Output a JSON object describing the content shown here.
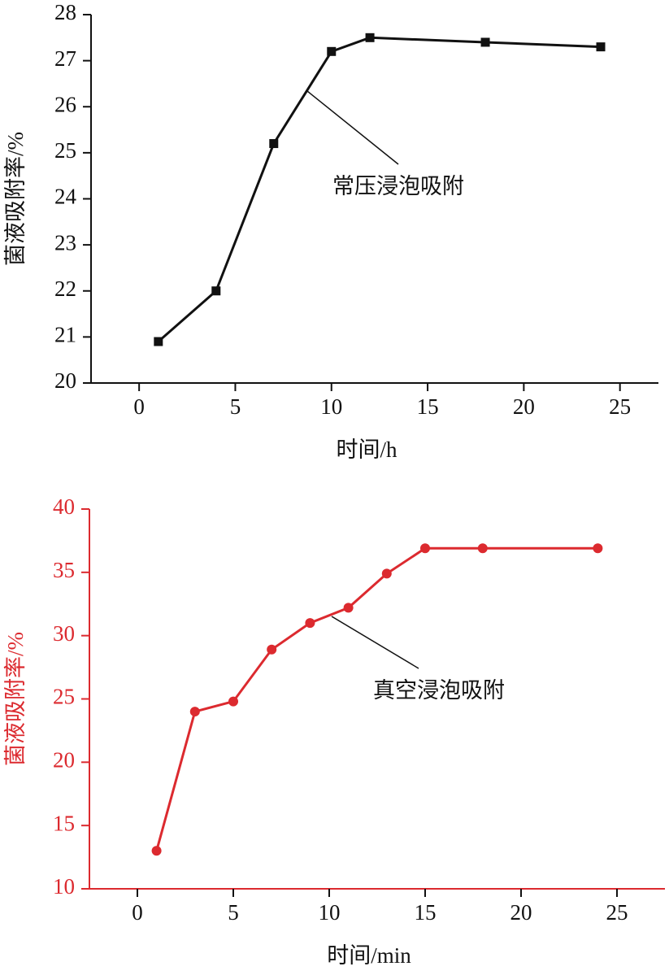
{
  "chart_data": [
    {
      "type": "line",
      "x_label": "时间/h",
      "y_label": "菌液吸附率/%",
      "annotation": "常压浸泡吸附",
      "x": [
        1,
        4,
        7,
        10,
        12,
        18,
        24
      ],
      "values": [
        20.9,
        22.0,
        25.2,
        27.2,
        27.5,
        27.4,
        27.3
      ],
      "color": "#111111",
      "axis_color": "#111111",
      "marker": "square",
      "xlim": [
        -2.5,
        27
      ],
      "xticks": [
        0,
        5,
        10,
        15,
        20,
        25
      ],
      "ylim": [
        20,
        28
      ],
      "yticks": [
        20,
        21,
        22,
        23,
        24,
        25,
        26,
        27,
        28
      ]
    },
    {
      "type": "line",
      "x_label": "时间/min",
      "y_label": "菌液吸附率/%",
      "annotation": "真空浸泡吸附",
      "x": [
        1,
        3,
        5,
        7,
        9,
        11,
        13,
        15,
        18,
        24
      ],
      "values": [
        13,
        24,
        24.8,
        28.9,
        31,
        32.2,
        34.9,
        36.9,
        36.9,
        36.9
      ],
      "color": "#dc2a2f",
      "axis_color": "#dc2a2f",
      "marker": "circle",
      "xlim": [
        -2.5,
        27.5
      ],
      "xticks": [
        0,
        5,
        10,
        15,
        20,
        25
      ],
      "ylim": [
        10,
        40
      ],
      "yticks": [
        10,
        15,
        20,
        25,
        30,
        35,
        40
      ]
    }
  ]
}
